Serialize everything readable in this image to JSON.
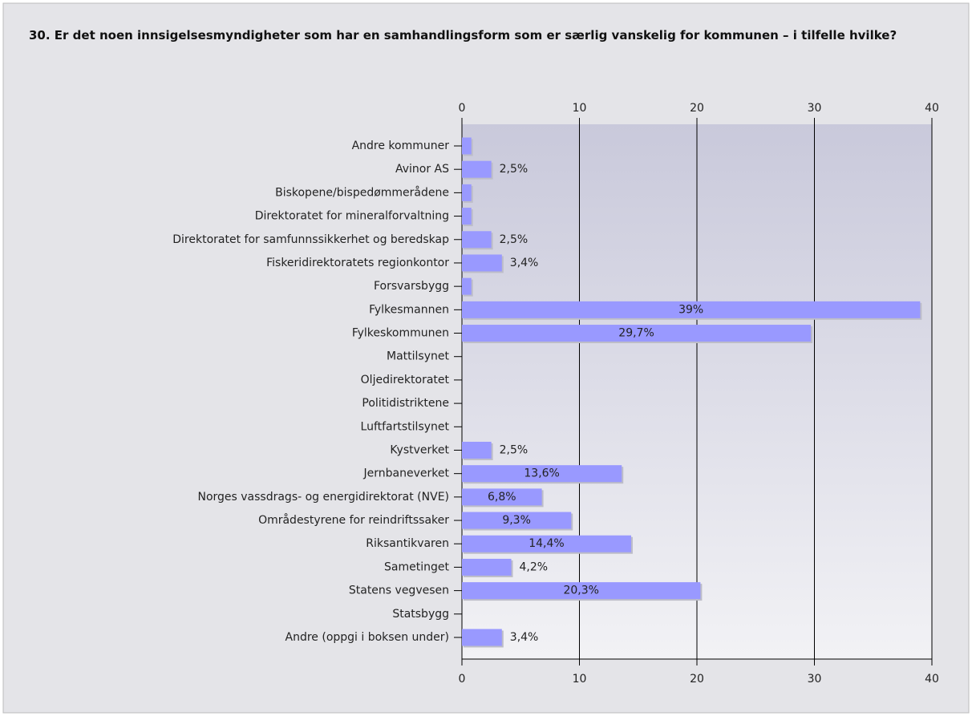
{
  "chart_data": {
    "type": "barh",
    "title": "30. Er det noen innsigelsesmyndigheter som har en samhandlingsform som er særlig vanskelig for kommunen – i tilfelle hvilke?",
    "categories": [
      "Andre kommuner",
      "Avinor AS",
      "Biskopene/bispedømmerådene",
      "Direktoratet for mineralforvaltning",
      "Direktoratet for samfunnssikkerhet og beredskap",
      "Fiskeridirektoratets regionkontor",
      "Forsvarsbygg",
      "Fylkesmannen",
      "Fylkeskommunen",
      "Mattilsynet",
      "Oljedirektoratet",
      "Politidistriktene",
      "Luftfartstilsynet",
      "Kystverket",
      "Jernbaneverket",
      "Norges vassdrags- og energidirektorat (NVE)",
      "Områdestyrene for reindriftssaker",
      "Riksantikvaren",
      "Sametinget",
      "Statens vegvesen",
      "Statsbygg",
      "Andre (oppgi i boksen under)"
    ],
    "values": [
      0.8,
      2.5,
      0.8,
      0.8,
      2.5,
      3.4,
      0.8,
      39,
      29.7,
      0,
      0,
      0,
      0,
      2.5,
      13.6,
      6.8,
      9.3,
      14.4,
      4.2,
      20.3,
      0,
      3.4
    ],
    "value_labels": [
      null,
      "2,5%",
      null,
      null,
      "2,5%",
      "3,4%",
      null,
      "39%",
      "29,7%",
      null,
      null,
      null,
      null,
      "2,5%",
      "13,6%",
      "6,8%",
      "9,3%",
      "14,4%",
      "4,2%",
      "20,3%",
      null,
      "3,4%"
    ],
    "color": "#9999ff",
    "xlim": [
      0,
      40
    ],
    "xticks": [
      0,
      10,
      20,
      30,
      40
    ],
    "grid": true
  }
}
